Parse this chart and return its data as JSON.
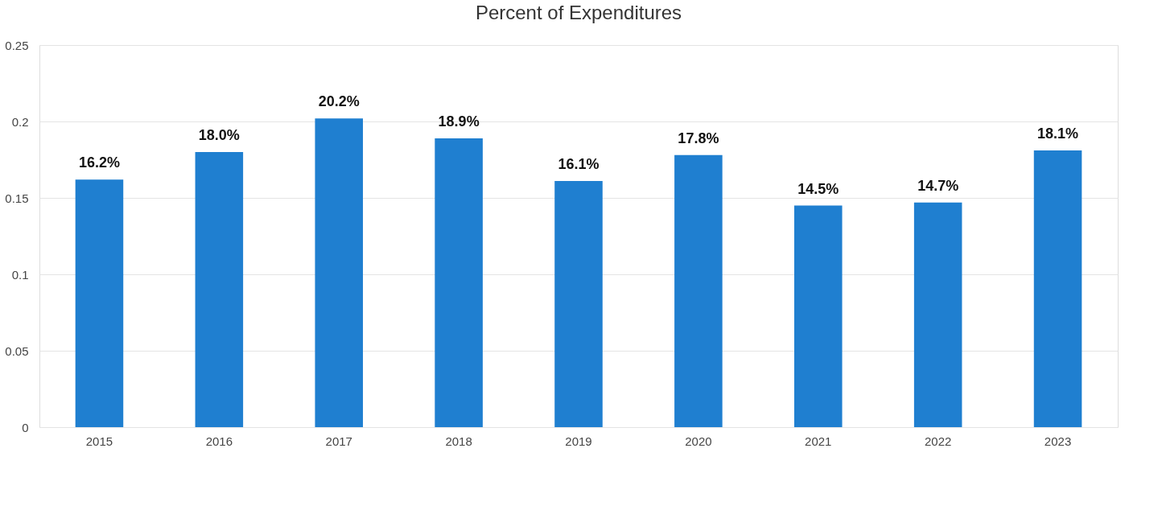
{
  "chart_data": {
    "type": "bar",
    "title": "Percent of Expenditures",
    "categories": [
      "2015",
      "2016",
      "2017",
      "2018",
      "2019",
      "2020",
      "2021",
      "2022",
      "2023"
    ],
    "values": [
      0.162,
      0.18,
      0.202,
      0.189,
      0.161,
      0.178,
      0.145,
      0.147,
      0.181
    ],
    "value_labels": [
      "16.2%",
      "18.0%",
      "20.2%",
      "18.9%",
      "16.1%",
      "17.8%",
      "14.5%",
      "14.7%",
      "18.1%"
    ],
    "color": "#1f7fd0",
    "ylim": [
      0,
      0.25
    ],
    "yticks": [
      0,
      0.05,
      0.1,
      0.15,
      0.2,
      0.25
    ],
    "grid": "y"
  }
}
